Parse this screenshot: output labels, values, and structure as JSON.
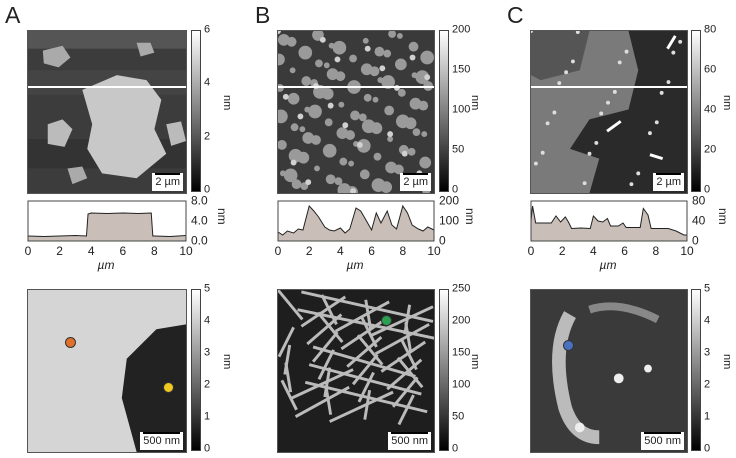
{
  "panels": [
    {
      "label": "A",
      "top_image": {
        "colorbar_ticks": [
          "0",
          "2",
          "4",
          "6"
        ],
        "unit": "nm",
        "scalebar": "2 µm"
      },
      "bottom_image": {
        "colorbar_ticks": [
          "0",
          "1",
          "2",
          "3",
          "4",
          "5"
        ],
        "unit": "nm",
        "scalebar": "500 nm",
        "markers": [
          "#e0702a",
          "#f0c820"
        ]
      }
    },
    {
      "label": "B",
      "top_image": {
        "colorbar_ticks": [
          "0",
          "50",
          "100",
          "150",
          "200"
        ],
        "unit": "nm",
        "scalebar": "2 µm"
      },
      "bottom_image": {
        "colorbar_ticks": [
          "0",
          "50",
          "100",
          "150",
          "200",
          "250"
        ],
        "unit": "nm",
        "scalebar": "500 nm",
        "markers": [
          "#2aa050"
        ]
      }
    },
    {
      "label": "C",
      "top_image": {
        "colorbar_ticks": [
          "0",
          "20",
          "40",
          "60",
          "80"
        ],
        "unit": "nm",
        "scalebar": "2 µm"
      },
      "bottom_image": {
        "colorbar_ticks": [
          "0",
          "1",
          "2",
          "3",
          "4",
          "5"
        ],
        "unit": "nm",
        "scalebar": "500 nm",
        "markers": [
          "#4a70c0"
        ]
      }
    }
  ],
  "chart_data": [
    {
      "type": "area",
      "xlabel": "µm",
      "ylabel": "nm",
      "xlim": [
        0,
        10
      ],
      "ylim": [
        0,
        8
      ],
      "xticks": [
        "0",
        "2",
        "4",
        "6",
        "8",
        "10"
      ],
      "yticks": [
        "0.0",
        "4.0",
        "8.0"
      ],
      "x": [
        0,
        1,
        2,
        3,
        3.7,
        3.8,
        4,
        5,
        6,
        7,
        7.8,
        7.9,
        8,
        9,
        10
      ],
      "y": [
        1,
        0.9,
        1,
        1.1,
        1,
        5.4,
        5.6,
        5.5,
        5.6,
        5.5,
        5.6,
        1,
        1,
        0.9,
        1.1
      ]
    },
    {
      "type": "area",
      "xlabel": "µm",
      "ylabel": "nm",
      "xlim": [
        0,
        10
      ],
      "ylim": [
        0,
        200
      ],
      "xticks": [
        "0",
        "2",
        "4",
        "6",
        "8",
        "10"
      ],
      "yticks": [
        "0",
        "100",
        "200"
      ],
      "x": [
        0,
        0.3,
        0.6,
        1,
        1.3,
        1.6,
        2,
        2.3,
        2.6,
        3,
        3.3,
        3.6,
        4,
        4.3,
        4.6,
        5,
        5.3,
        5.6,
        6,
        6.3,
        6.6,
        7,
        7.3,
        7.6,
        8,
        8.3,
        8.6,
        9,
        9.3,
        9.6,
        10
      ],
      "y": [
        45,
        30,
        50,
        40,
        60,
        55,
        175,
        150,
        120,
        70,
        55,
        50,
        65,
        40,
        60,
        165,
        150,
        110,
        55,
        140,
        90,
        150,
        80,
        60,
        175,
        140,
        80,
        60,
        50,
        70,
        55
      ]
    },
    {
      "type": "area",
      "xlabel": "µm",
      "ylabel": "nm",
      "xlim": [
        0,
        10
      ],
      "ylim": [
        0,
        80
      ],
      "xticks": [
        "0",
        "2",
        "4",
        "6",
        "8",
        "10"
      ],
      "yticks": [
        "0",
        "40",
        "80"
      ],
      "x": [
        0,
        0.1,
        0.3,
        1.3,
        1.6,
        1.9,
        2.2,
        2.4,
        2.6,
        3.2,
        3.8,
        4,
        4.3,
        4.6,
        4.9,
        5.1,
        5.6,
        5.9,
        6.1,
        7,
        7.2,
        7.5,
        7.7,
        8.8,
        9.3,
        9.8,
        10
      ],
      "y": [
        40,
        70,
        36,
        36,
        50,
        38,
        48,
        38,
        25,
        26,
        25,
        50,
        40,
        38,
        45,
        30,
        30,
        36,
        27,
        27,
        65,
        52,
        25,
        25,
        20,
        12,
        12
      ]
    }
  ]
}
